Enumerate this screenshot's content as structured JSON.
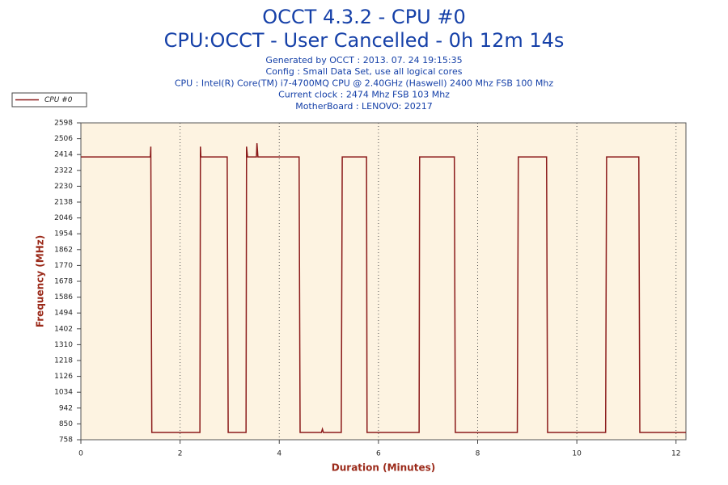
{
  "chart_data": {
    "type": "line",
    "title": "OCCT 4.3.2 - CPU #0",
    "subtitle": "CPU:OCCT - User Cancelled - 0h 12m 14s",
    "info": [
      "Generated by OCCT : 2013. 07. 24 19:15:35",
      "Config : Small Data Set, use all logical cores",
      "CPU : Intel(R) Core(TM) i7-4700MQ CPU @ 2.40GHz (Haswell) 2400 Mhz FSB 100 Mhz",
      "Current clock : 2474 Mhz FSB 103 Mhz",
      "MotherBoard : LENOVO: 20217"
    ],
    "x_label": "Duration (Minutes)",
    "y_label": "Frequency (MHz)",
    "x": [
      0,
      1.4,
      1.41,
      1.43,
      2.4,
      2.41,
      2.42,
      2.95,
      2.97,
      3.33,
      3.34,
      3.36,
      3.54,
      3.55,
      3.57,
      4.4,
      4.42,
      4.85,
      4.87,
      4.89,
      5.25,
      5.27,
      5.76,
      5.77,
      6.82,
      6.83,
      7.53,
      7.55,
      8.8,
      8.82,
      9.39,
      9.41,
      10.58,
      10.6,
      11.25,
      11.27,
      12.2
    ],
    "series": [
      {
        "name": "CPU #0",
        "color": "#8b1a1a",
        "values": [
          2400,
          2400,
          2460,
          800,
          800,
          2460,
          2400,
          2400,
          800,
          800,
          2460,
          2400,
          2400,
          2480,
          2400,
          2400,
          800,
          800,
          820,
          800,
          800,
          2400,
          2400,
          800,
          800,
          2400,
          2400,
          800,
          800,
          2400,
          2400,
          800,
          800,
          2400,
          2400,
          800,
          800
        ]
      }
    ],
    "xlim": [
      0,
      12.2
    ],
    "ylim": [
      758,
      2598
    ],
    "xticks": [
      0,
      2,
      4,
      6,
      8,
      10,
      12
    ],
    "yticks": [
      758,
      850,
      942,
      1034,
      1126,
      1218,
      1310,
      1402,
      1494,
      1586,
      1678,
      1770,
      1862,
      1954,
      2046,
      2138,
      2230,
      2322,
      2414,
      2506,
      2598
    ],
    "grid": true,
    "legend": "top-left"
  }
}
